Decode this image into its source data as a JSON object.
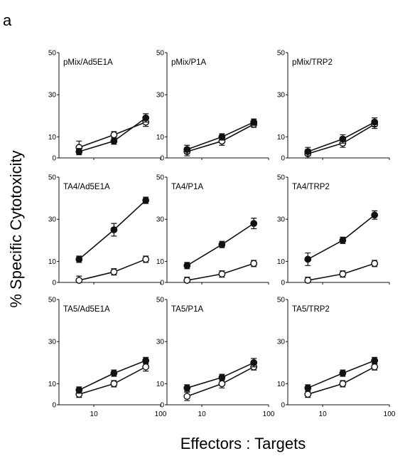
{
  "figure": {
    "panel_label": "a",
    "ylabel": "% Specific Cytotoxicity",
    "xlabel": "Effectors : Targets"
  },
  "chart_data": {
    "type": "line",
    "xscale": "log",
    "xlim": [
      3,
      100
    ],
    "ylim": [
      0,
      50
    ],
    "x_ticks": [
      "10",
      "100"
    ],
    "y_ticks": [
      "0",
      "10",
      "30",
      "50"
    ],
    "series_styles": [
      {
        "marker": "filled-circle",
        "color": "#111111"
      },
      {
        "marker": "open-circle",
        "color": "#111111"
      }
    ],
    "x": [
      6,
      20,
      60
    ],
    "panels": [
      {
        "title": "pMix/Ad5E1A",
        "series": [
          {
            "values": [
              3,
              8,
              19
            ],
            "err": [
              1.5,
              1.5,
              2
            ]
          },
          {
            "values": [
              5,
              11,
              17
            ],
            "err": [
              3,
              1.5,
              2
            ]
          }
        ]
      },
      {
        "title": "pMix/P1A",
        "series": [
          {
            "values": [
              4,
              10,
              17
            ],
            "err": [
              2,
              1.5,
              1.5
            ]
          },
          {
            "values": [
              3,
              8,
              16
            ],
            "err": [
              2,
              2,
              1.5
            ]
          }
        ]
      },
      {
        "title": "pMix/TRP2",
        "series": [
          {
            "values": [
              3,
              9,
              17
            ],
            "err": [
              2,
              2,
              2
            ]
          },
          {
            "values": [
              2,
              7,
              16
            ],
            "err": [
              2,
              2,
              2
            ]
          }
        ]
      },
      {
        "title": "TA4/Ad5E1A",
        "series": [
          {
            "values": [
              11,
              25,
              39
            ],
            "err": [
              1.5,
              3,
              1.5
            ]
          },
          {
            "values": [
              1,
              5,
              11
            ],
            "err": [
              2,
              1.5,
              1.5
            ]
          }
        ]
      },
      {
        "title": "TA4/P1A",
        "series": [
          {
            "values": [
              8,
              18,
              28
            ],
            "err": [
              1.5,
              1.5,
              2.5
            ]
          },
          {
            "values": [
              1,
              4,
              9
            ],
            "err": [
              1.5,
              1.5,
              1.5
            ]
          }
        ]
      },
      {
        "title": "TA4/TRP2",
        "series": [
          {
            "values": [
              11,
              20,
              32
            ],
            "err": [
              3,
              1.5,
              2
            ]
          },
          {
            "values": [
              1,
              4,
              9
            ],
            "err": [
              1.5,
              1.5,
              1.5
            ]
          }
        ]
      },
      {
        "title": "TA5/Ad5E1A",
        "series": [
          {
            "values": [
              7,
              15,
              21
            ],
            "err": [
              1.5,
              1.5,
              1.5
            ]
          },
          {
            "values": [
              5,
              10,
              18
            ],
            "err": [
              1.5,
              1.5,
              2
            ]
          }
        ]
      },
      {
        "title": "TA5/P1A",
        "series": [
          {
            "values": [
              8,
              13,
              20
            ],
            "err": [
              1.5,
              1.5,
              2
            ]
          },
          {
            "values": [
              4,
              10,
              18
            ],
            "err": [
              2,
              2,
              1.5
            ]
          }
        ]
      },
      {
        "title": "TA5/TRP2",
        "series": [
          {
            "values": [
              8,
              15,
              21
            ],
            "err": [
              1.5,
              1.5,
              1.5
            ]
          },
          {
            "values": [
              5,
              10,
              18
            ],
            "err": [
              1.5,
              1.5,
              1.5
            ]
          }
        ]
      }
    ]
  }
}
